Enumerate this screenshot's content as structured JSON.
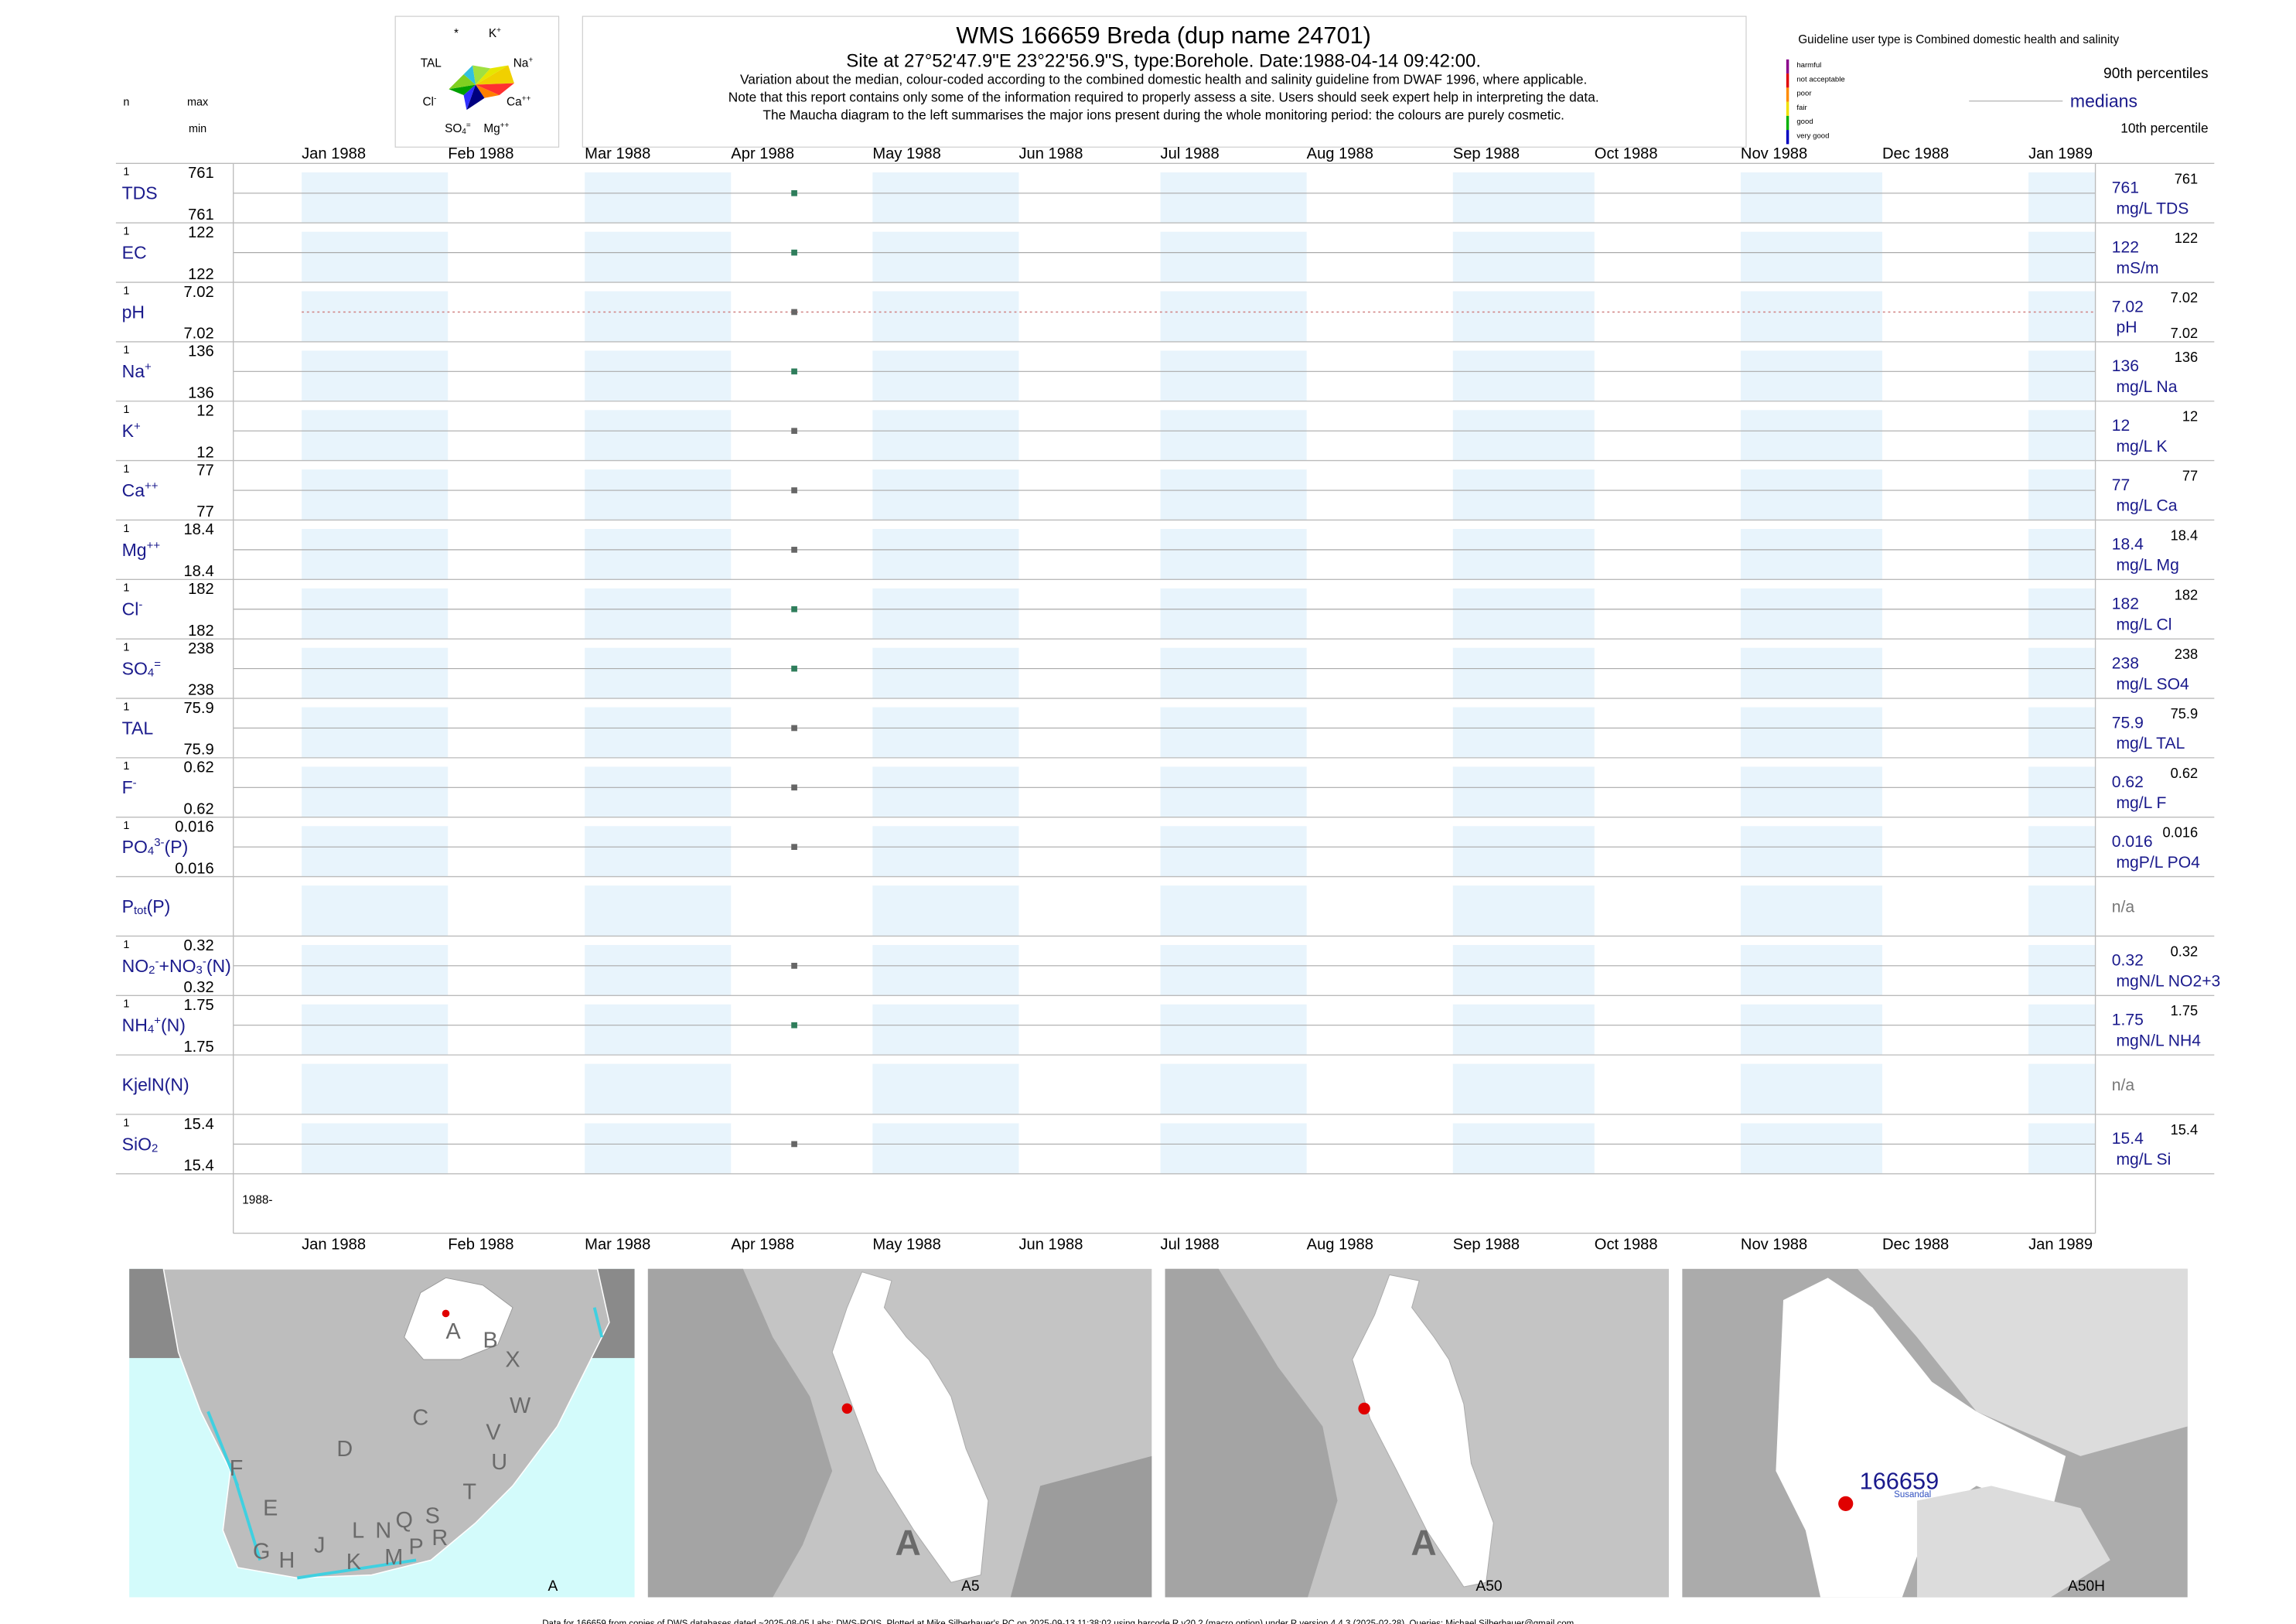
{
  "header": {
    "n": "n",
    "max": "max",
    "min": "min",
    "title": "WMS 166659  Breda (dup name 24701)",
    "site": "Site at 27°52'47.9\"E 23°22'56.9\"S, type:Borehole. Date:",
    "date": "1988-04-14 09:42:00",
    "site_end": ".",
    "notes": [
      "Variation about the median,  colour-coded according to the combined domestic health and salinity guideline from DWAF 1996, where applicable.",
      "Note that this report contains only some of the information required to properly assess a site. Users should seek expert help in interpreting the data.",
      "The Maucha diagram to the left summarises the major ions present during the whole monitoring period: the colours are purely cosmetic."
    ]
  },
  "maucha": {
    "labels": [
      [
        {
          "t": "*"
        }
      ],
      [
        {
          "t": "K"
        },
        {
          "sup": "+"
        }
      ],
      [
        {
          "t": "TAL"
        }
      ],
      [
        {
          "t": "Na"
        },
        {
          "sup": "+"
        }
      ],
      [
        {
          "t": "Cl"
        },
        {
          "sup": "-"
        }
      ],
      [
        {
          "t": "Ca"
        },
        {
          "sup": "++"
        }
      ],
      [
        {
          "t": "SO"
        },
        {
          "sub": "4"
        },
        {
          "sup": "="
        }
      ],
      [
        {
          "t": "Mg"
        },
        {
          "sup": "++"
        }
      ]
    ]
  },
  "legend": {
    "guideline": "Guideline user type is Combined domestic health and salinity",
    "classes": [
      {
        "name": "harmful",
        "color": "#8b008b"
      },
      {
        "name": "not acceptable",
        "color": "#e00000"
      },
      {
        "name": "poor",
        "color": "#ff8c00"
      },
      {
        "name": "fair",
        "color": "#f0e000"
      },
      {
        "name": "good",
        "color": "#00b000"
      },
      {
        "name": "very good",
        "color": "#0000c0"
      }
    ],
    "p90": "90th percentiles",
    "medians": "medians",
    "p10": "10th percentile"
  },
  "chart_data": {
    "type": "strip",
    "categories": [
      "Jan 1988",
      "Feb 1988",
      "Mar 1988",
      "Apr 1988",
      "May 1988",
      "Jun 1988",
      "Jul 1988",
      "Aug 1988",
      "Sep 1988",
      "Oct 1988",
      "Nov 1988",
      "Dec 1988",
      "Jan 1989"
    ],
    "year_strip": "1988-",
    "rows": [
      {
        "label": [
          {
            "t": "TDS"
          }
        ],
        "n": 1,
        "max": 761,
        "min": 761,
        "median": 761,
        "p90": 761,
        "unit": "mg/L TDS",
        "color": "#2e7d5b"
      },
      {
        "label": [
          {
            "t": "EC"
          }
        ],
        "n": 1,
        "max": 122,
        "min": 122,
        "median": 122,
        "p90": 122,
        "unit": "mS/m",
        "color": "#2e7d5b"
      },
      {
        "label": [
          {
            "t": "pH"
          }
        ],
        "n": 1,
        "max": 7.02,
        "min": 7.02,
        "median": 7.02,
        "p90": 7.02,
        "p10": 7.02,
        "unit": "pH",
        "color": "#666666",
        "dashed": true
      },
      {
        "label": [
          {
            "t": "Na"
          },
          {
            "sup": "+"
          }
        ],
        "n": 1,
        "max": 136,
        "min": 136,
        "median": 136,
        "p90": 136,
        "unit": "mg/L Na",
        "color": "#2e7d5b"
      },
      {
        "label": [
          {
            "t": "K"
          },
          {
            "sup": "+"
          }
        ],
        "n": 1,
        "max": 12,
        "min": 12,
        "median": 12,
        "p90": 12,
        "unit": "mg/L K",
        "color": "#666666"
      },
      {
        "label": [
          {
            "t": "Ca"
          },
          {
            "sup": "++"
          }
        ],
        "n": 1,
        "max": 77,
        "min": 77,
        "median": 77,
        "p90": 77,
        "unit": "mg/L Ca",
        "color": "#666666"
      },
      {
        "label": [
          {
            "t": "Mg"
          },
          {
            "sup": "++"
          }
        ],
        "n": 1,
        "max": 18.4,
        "min": 18.4,
        "median": 18.4,
        "p90": 18.4,
        "unit": "mg/L Mg",
        "color": "#666666"
      },
      {
        "label": [
          {
            "t": "Cl"
          },
          {
            "sup": "-"
          }
        ],
        "n": 1,
        "max": 182,
        "min": 182,
        "median": 182,
        "p90": 182,
        "unit": "mg/L Cl",
        "color": "#2e7d5b"
      },
      {
        "label": [
          {
            "t": "SO"
          },
          {
            "sub": "4"
          },
          {
            "sup": "="
          }
        ],
        "n": 1,
        "max": 238,
        "min": 238,
        "median": 238,
        "p90": 238,
        "unit": "mg/L SO4",
        "color": "#2e7d5b"
      },
      {
        "label": [
          {
            "t": "TAL"
          }
        ],
        "n": 1,
        "max": 75.9,
        "min": 75.9,
        "median": 75.9,
        "p90": 75.9,
        "unit": "mg/L TAL",
        "color": "#666666"
      },
      {
        "label": [
          {
            "t": "F"
          },
          {
            "sup": "-"
          }
        ],
        "n": 1,
        "max": 0.62,
        "min": 0.62,
        "median": 0.62,
        "p90": 0.62,
        "unit": "mg/L F",
        "color": "#666666"
      },
      {
        "label": [
          {
            "t": "PO"
          },
          {
            "sub": "4"
          },
          {
            "sup": "3-"
          },
          {
            "t": "(P)"
          }
        ],
        "n": 1,
        "max": 0.016,
        "min": 0.016,
        "median": 0.016,
        "p90": 0.016,
        "unit": "mgP/L PO4",
        "color": "#666666"
      },
      {
        "label": [
          {
            "t": "P"
          },
          {
            "sub": "tot"
          },
          {
            "t": "(P)"
          }
        ],
        "value_text": "n/a"
      },
      {
        "label": [
          {
            "t": "NO"
          },
          {
            "sub": "2"
          },
          {
            "sup": "-"
          },
          {
            "t": "+NO"
          },
          {
            "sub": "3"
          },
          {
            "sup": "-"
          },
          {
            "t": "(N)"
          }
        ],
        "n": 1,
        "max": 0.32,
        "min": 0.32,
        "median": 0.32,
        "p90": 0.32,
        "unit": "mgN/L NO2+3",
        "color": "#666666"
      },
      {
        "label": [
          {
            "t": "NH"
          },
          {
            "sub": "4"
          },
          {
            "sup": "+"
          },
          {
            "t": "(N)"
          }
        ],
        "n": 1,
        "max": 1.75,
        "min": 1.75,
        "median": 1.75,
        "p90": 1.75,
        "unit": "mgN/L NH4",
        "color": "#2e7d5b"
      },
      {
        "label": [
          {
            "t": "KjelN(N)"
          }
        ],
        "value_text": "n/a"
      },
      {
        "label": [
          {
            "t": "SiO"
          },
          {
            "sub": "2"
          }
        ],
        "n": 1,
        "max": 15.4,
        "min": 15.4,
        "median": 15.4,
        "p90": 15.4,
        "unit": "mg/L Si",
        "color": "#666666"
      }
    ]
  },
  "maps": {
    "panels": [
      {
        "label": "A",
        "regions": [
          "A",
          "B",
          "X",
          "W",
          "C",
          "V",
          "U",
          "D",
          "F",
          "T",
          "E",
          "S",
          "R",
          "Q",
          "N",
          "L",
          "J",
          "K",
          "M",
          "P",
          "G",
          "H"
        ]
      },
      {
        "label": "A5",
        "regions": [
          "A"
        ]
      },
      {
        "label": "A50",
        "regions": [
          "A"
        ]
      },
      {
        "label": "A50H",
        "site": "166659",
        "place": "Susandal"
      }
    ]
  },
  "footer": "Data for 166659 from copies of DWS databases dated ~2025-08-05 Labs: DWS-RQIS. Plotted at Mike Silberbauer's PC on 2025-09-13 11:38:02 using barcode.R v20.2 (macro option) under R version 4.4.3 (2025-02-28). Queries: Michael.Silberbauer@gmail.com"
}
